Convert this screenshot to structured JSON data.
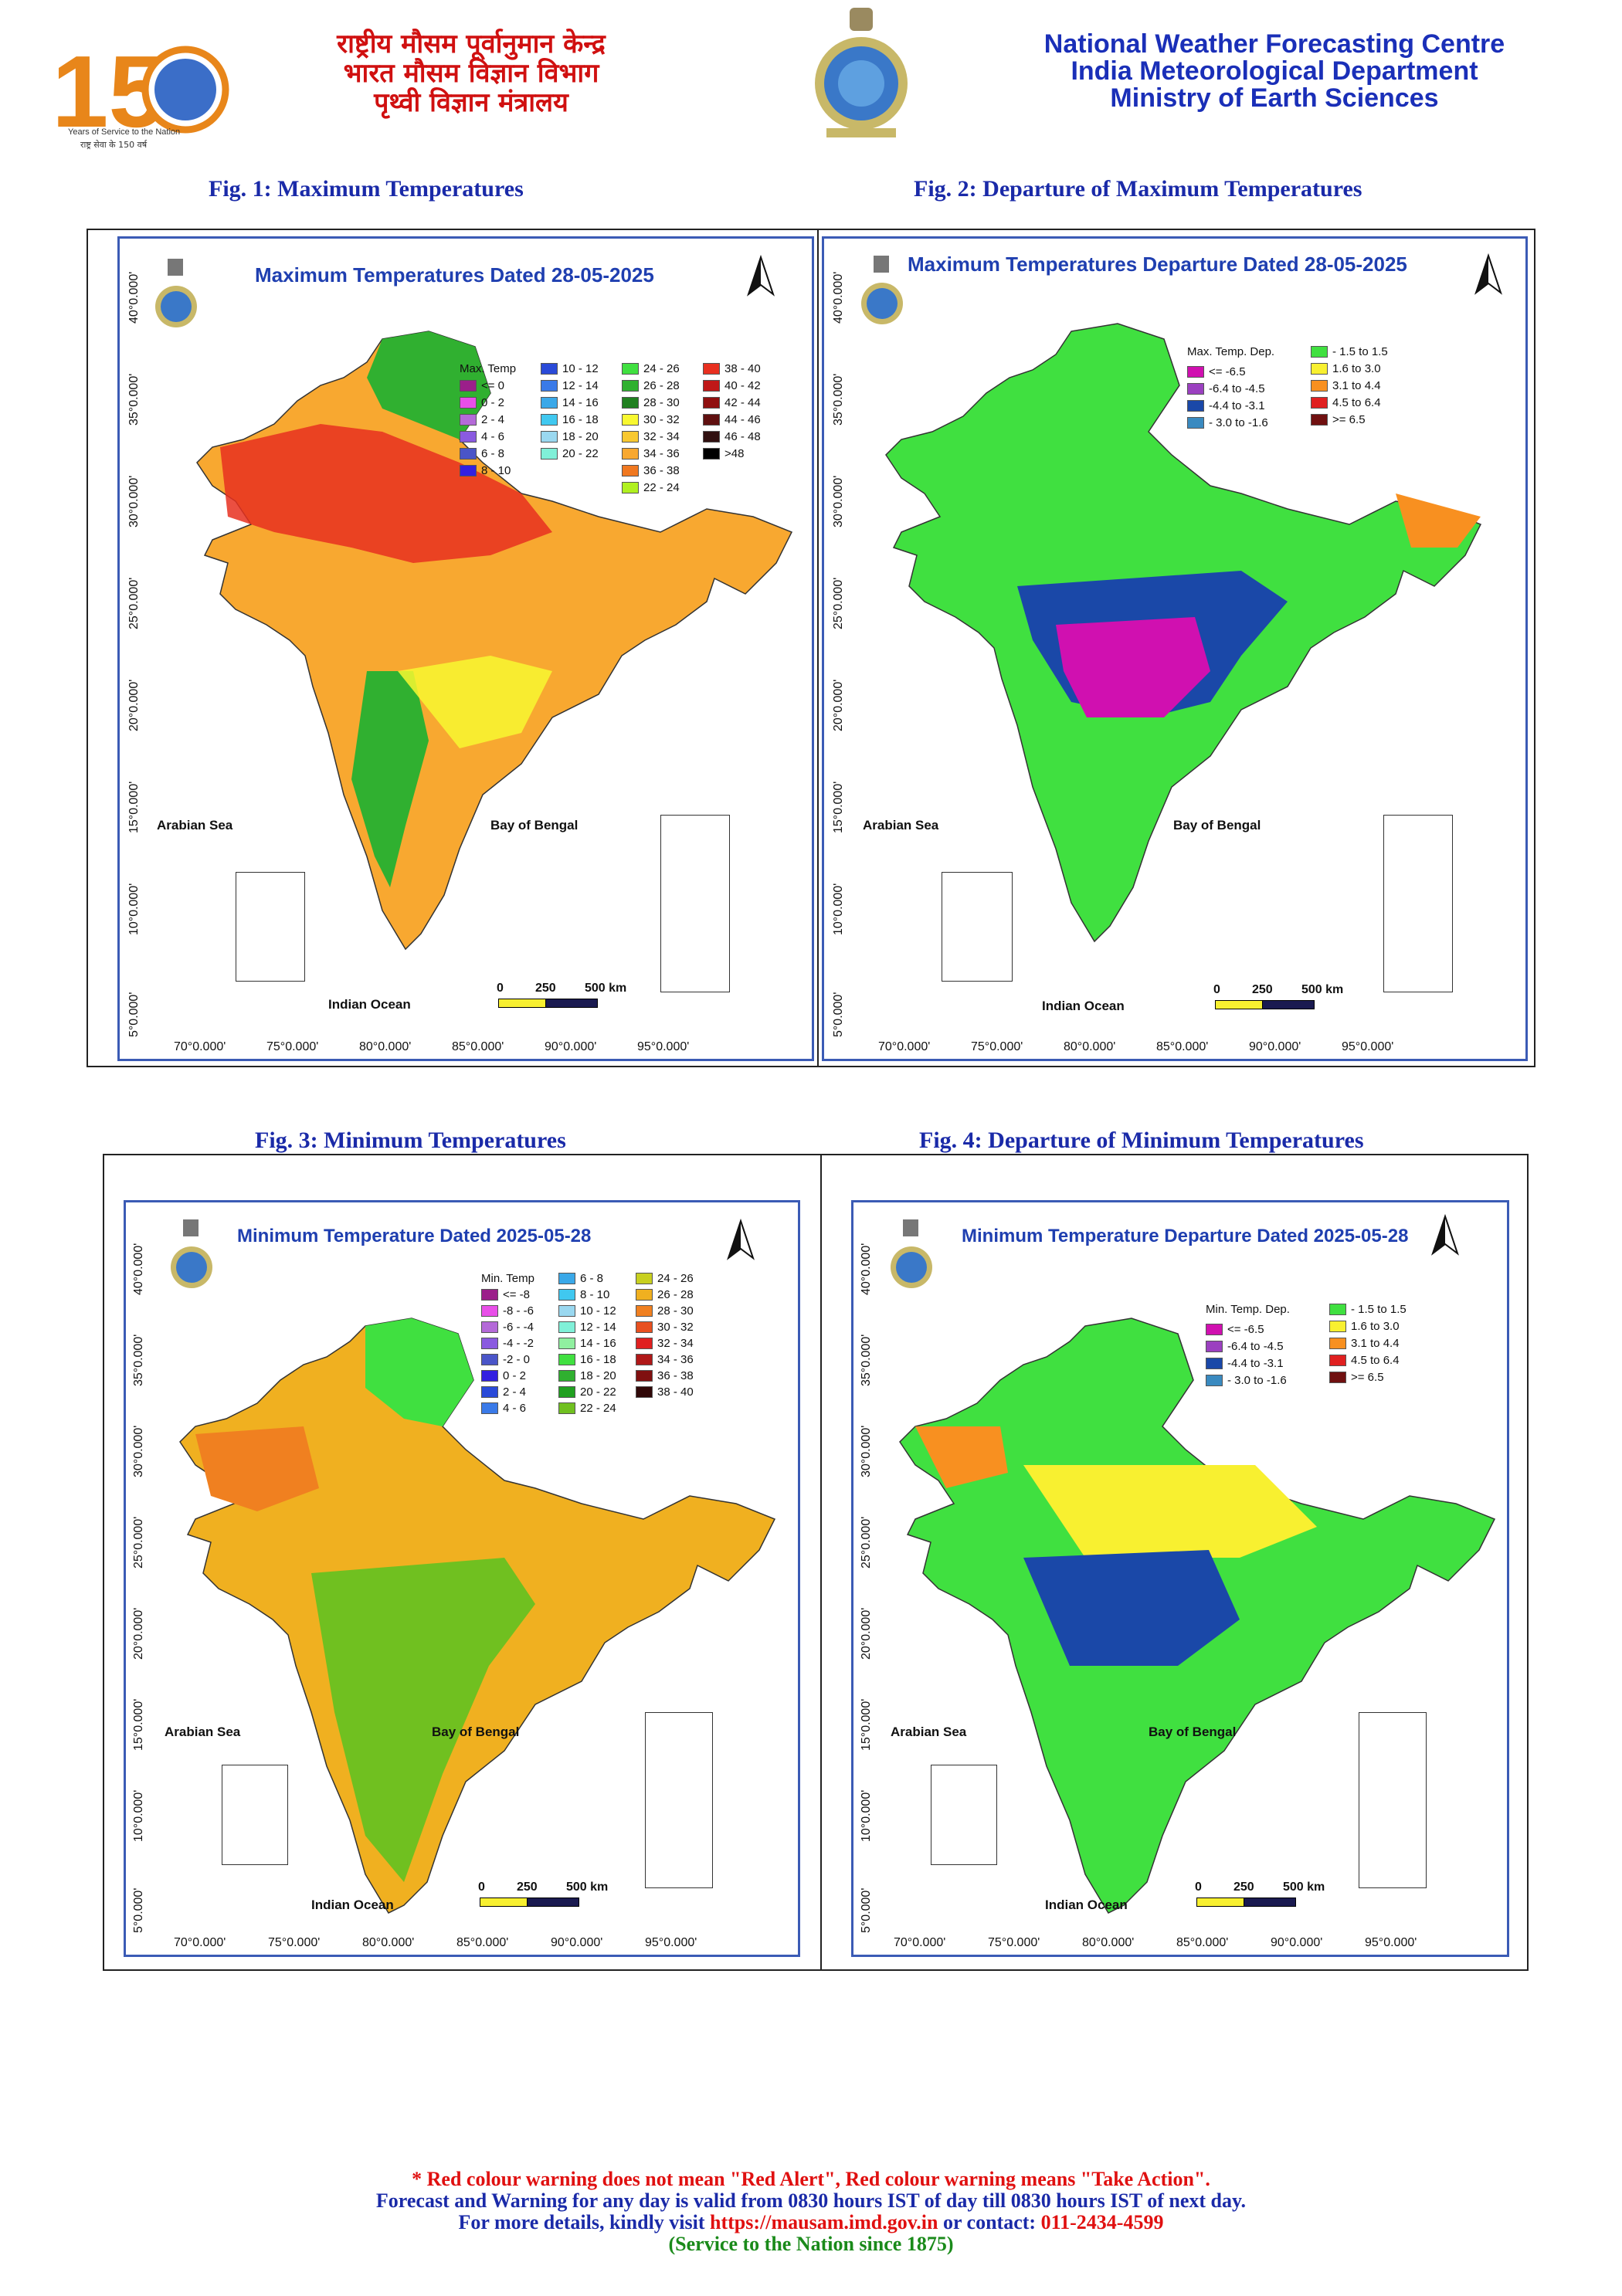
{
  "header": {
    "logo150": {
      "number": "150",
      "tagline": "Years of Service to the Nation",
      "tagline_hindi": "राष्ट्र सेवा के 150 वर्ष"
    },
    "hindi_lines": [
      "राष्ट्रीय मौसम पूर्वानुमान केन्द्र",
      "भारत मौसम विज्ञान विभाग",
      "पृथ्वी विज्ञान मंत्रालय"
    ],
    "english_lines": [
      "National Weather Forecasting Centre",
      "India Meteorological Department",
      "Ministry of Earth Sciences"
    ]
  },
  "figures": [
    {
      "caption": "Fig. 1: Maximum Temperatures",
      "map_title": "Maximum Temperatures  Dated 28-05-2025",
      "legend_title": "Max. Temp",
      "legend": [
        {
          "label": "<= 0",
          "color": "#9b1f8a"
        },
        {
          "label": "0 - 2",
          "color": "#e84fe8"
        },
        {
          "label": "2 - 4",
          "color": "#b46ad8"
        },
        {
          "label": "4 - 6",
          "color": "#8a5ae0"
        },
        {
          "label": "6 - 8",
          "color": "#4a55c8"
        },
        {
          "label": "8 - 10",
          "color": "#3320e0"
        },
        {
          "label": "10 - 12",
          "color": "#2a4ad8"
        },
        {
          "label": "12 - 14",
          "color": "#3a7ae8"
        },
        {
          "label": "14 - 16",
          "color": "#3aa8e8"
        },
        {
          "label": "16 - 18",
          "color": "#40c8f0"
        },
        {
          "label": "18 - 20",
          "color": "#9ad8f0"
        },
        {
          "label": "20 - 22",
          "color": "#80f0d8"
        },
        {
          "label": "24 - 26",
          "color": "#40e040"
        },
        {
          "label": "26 - 28",
          "color": "#30b030"
        },
        {
          "label": "28 - 30",
          "color": "#208020"
        },
        {
          "label": "30 - 32",
          "color": "#f8f830"
        },
        {
          "label": "32 - 34",
          "color": "#f8c830"
        },
        {
          "label": "34 - 36",
          "color": "#f8a830"
        },
        {
          "label": "36 - 38",
          "color": "#f07820"
        },
        {
          "label": "38 - 40",
          "color": "#e83020"
        },
        {
          "label": "40 - 42",
          "color": "#c01818"
        },
        {
          "label": "42 - 44",
          "color": "#901010"
        },
        {
          "label": "44 - 46",
          "color": "#601010"
        },
        {
          "label": "46 - 48",
          "color": "#301010"
        },
        {
          "label": ">48",
          "color": "#000000"
        },
        {
          "label": "22 - 24",
          "color": "#b0f020"
        }
      ]
    },
    {
      "caption": "Fig. 2: Departure of Maximum Temperatures",
      "map_title": "Maximum Temperatures Departure Dated 28-05-2025",
      "legend_title": "Max. Temp. Dep.",
      "legend": [
        {
          "label": "<= -6.5",
          "color": "#d010b0"
        },
        {
          "label": "-6.4 to -4.5",
          "color": "#9b40c0"
        },
        {
          "label": "-4.4 to -3.1",
          "color": "#1a48a8"
        },
        {
          "label": "- 3.0 to -1.6",
          "color": "#3a8ac0"
        },
        {
          "label": "- 1.5 to 1.5",
          "color": "#40e040"
        },
        {
          "label": "1.6 to  3.0",
          "color": "#f8f030"
        },
        {
          "label": "3.1 to 4.4",
          "color": "#f89020"
        },
        {
          "label": "4.5 to 6.4",
          "color": "#e02020"
        },
        {
          "label": ">= 6.5",
          "color": "#701010"
        }
      ]
    },
    {
      "caption": "Fig. 3: Minimum Temperatures",
      "map_title": "Minimum Temperature Dated 2025-05-28",
      "legend_title": "Min. Temp",
      "legend": [
        {
          "label": "<= -8",
          "color": "#9b1f8a"
        },
        {
          "label": "-8 - -6",
          "color": "#e84fe8"
        },
        {
          "label": "-6 - -4",
          "color": "#b46ad8"
        },
        {
          "label": "-4 - -2",
          "color": "#8a5ae0"
        },
        {
          "label": "-2 - 0",
          "color": "#4a55c8"
        },
        {
          "label": "0 - 2",
          "color": "#3320e0"
        },
        {
          "label": "2 - 4",
          "color": "#2a4ad8"
        },
        {
          "label": "4 - 6",
          "color": "#3a7ae8"
        },
        {
          "label": "6 - 8",
          "color": "#3aa8e8"
        },
        {
          "label": "8 - 10",
          "color": "#40c8f0"
        },
        {
          "label": "10 - 12",
          "color": "#9ad8f0"
        },
        {
          "label": "12 - 14",
          "color": "#80f0d8"
        },
        {
          "label": "14 - 16",
          "color": "#90f0a0"
        },
        {
          "label": "16 - 18",
          "color": "#40e040"
        },
        {
          "label": "18 - 20",
          "color": "#30b030"
        },
        {
          "label": "20 - 22",
          "color": "#20a020"
        },
        {
          "label": "22 - 24",
          "color": "#70c020"
        },
        {
          "label": "24 - 26",
          "color": "#c8d020"
        },
        {
          "label": "26 - 28",
          "color": "#f0b020"
        },
        {
          "label": "28 - 30",
          "color": "#f08020"
        },
        {
          "label": "30 - 32",
          "color": "#e85020"
        },
        {
          "label": "32 - 34",
          "color": "#e02020"
        },
        {
          "label": "34 - 36",
          "color": "#b01818"
        },
        {
          "label": "36 - 38",
          "color": "#801010"
        },
        {
          "label": "38 - 40",
          "color": "#300808"
        }
      ]
    },
    {
      "caption": "Fig. 4: Departure of Minimum Temperatures",
      "map_title": "Minimum Temperature Departure Dated 2025-05-28",
      "legend_title": "Min. Temp. Dep.",
      "legend": [
        {
          "label": "<= -6.5",
          "color": "#d010b0"
        },
        {
          "label": "-6.4 to -4.5",
          "color": "#9b40c0"
        },
        {
          "label": "-4.4 to -3.1",
          "color": "#1a48a8"
        },
        {
          "label": "- 3.0 to -1.6",
          "color": "#3a8ac0"
        },
        {
          "label": "- 1.5 to 1.5",
          "color": "#40e040"
        },
        {
          "label": "1.6 to  3.0",
          "color": "#f8f030"
        },
        {
          "label": "3.1 to 4.4",
          "color": "#f89020"
        },
        {
          "label": "4.5 to 6.4",
          "color": "#e02020"
        },
        {
          "label": ">= 6.5",
          "color": "#701010"
        }
      ]
    }
  ],
  "map_common": {
    "x_ticks": [
      "70°0.000'",
      "75°0.000'",
      "80°0.000'",
      "85°0.000'",
      "90°0.000'",
      "95°0.000'"
    ],
    "y_ticks": [
      "40°0.000'",
      "35°0.000'",
      "30°0.000'",
      "25°0.000'",
      "20°0.000'",
      "15°0.000'",
      "10°0.000'",
      "5°0.000'"
    ],
    "arabian_sea": "Arabian Sea",
    "bay_of_bengal": "Bay of Bengal",
    "indian_ocean": "Indian Ocean",
    "scale": {
      "zero": "0",
      "mid": "250",
      "end": "500 km"
    }
  },
  "footer": {
    "line1": "* Red colour warning does not mean \"Red Alert\", Red colour warning means \"Take Action\".",
    "line2": "Forecast and Warning for any day is valid from 0830 hours IST of day till 0830 hours IST of next day.",
    "line3_prefix": "For more details, kindly visit ",
    "line3_url": "https://mausam.imd.gov.in",
    "line3_mid": " or contact: ",
    "line3_phone": "011-2434-4599",
    "line4": "(Service to the Nation since 1875)"
  }
}
